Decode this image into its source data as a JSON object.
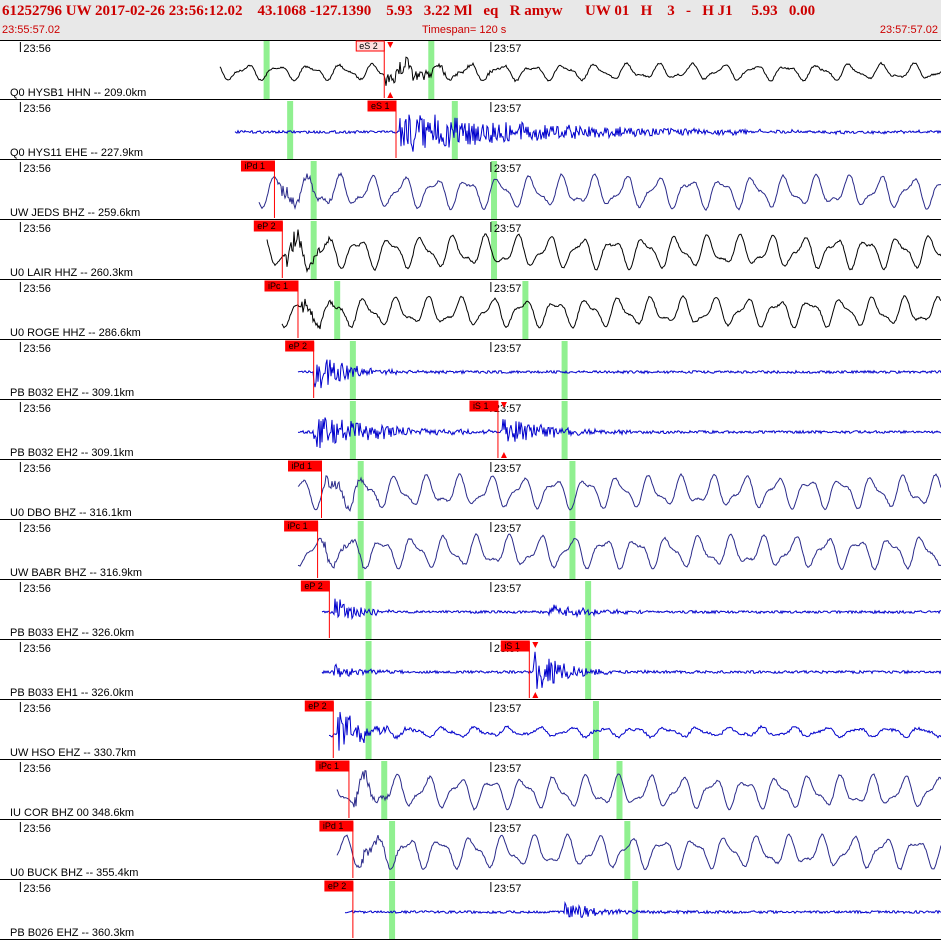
{
  "header": {
    "title": "61252796 UW 2017-02-26 23:56:12.02    43.1068 -127.1390    5.93   3.22 Ml   eq   R amyw      UW 01   H    3   -   H J1     5.93   0.00",
    "start_time": "23:55:57.02",
    "end_time": "23:57:57.02",
    "timespan": "Timespan= 120 s"
  },
  "chart_data": {
    "type": "line",
    "title": "",
    "x_start": "23:55:57.02",
    "x_end": "23:57:57.02",
    "timespan_s": 120,
    "tick_labels": [
      "23:56",
      "23:57"
    ],
    "tick_times_s": [
      2.98,
      62.98
    ],
    "grid": false,
    "colors": {
      "waveform_black": "#000000",
      "waveform_blue": "#0000cc",
      "pick": "#ff0000",
      "window": "#90f090"
    },
    "traces": [
      {
        "label": "Q0 HYSB1 HHN -- 209.0km",
        "color": "black",
        "onset_s": 28,
        "window_s": [
          34,
          55
        ],
        "picks": [
          {
            "label": "eS 2",
            "t": 49,
            "outline": true,
            "marker": true
          }
        ],
        "bursts": [
          {
            "t": 49,
            "amp": 1.0,
            "decay": 5
          }
        ],
        "lf": 0.5
      },
      {
        "label": "Q0 HYS11 EHE -- 227.9km",
        "color": "blue",
        "onset_s": 30,
        "window_s": [
          37,
          58
        ],
        "picks": [
          {
            "label": "eS 1",
            "t": 50.5
          }
        ],
        "bursts": [
          {
            "t": 51,
            "amp": 1.0,
            "decay": 18
          }
        ],
        "lf": 0.0
      },
      {
        "label": "UW JEDS BHZ -- 259.6km",
        "color": "navy",
        "onset_s": 33,
        "window_s": [
          40,
          63
        ],
        "picks": [
          {
            "label": "iPd 1",
            "t": 35
          }
        ],
        "bursts": [
          {
            "t": 35.5,
            "amp": 0.9,
            "decay": 3
          }
        ],
        "lf": 1.0
      },
      {
        "label": "U0 LAIR HHZ -- 260.3km",
        "color": "black",
        "onset_s": 34,
        "window_s": [
          40,
          63
        ],
        "picks": [
          {
            "label": "eP 2",
            "t": 36
          }
        ],
        "bursts": [
          {
            "t": 36.5,
            "amp": 1.0,
            "decay": 3
          }
        ],
        "lf": 1.0
      },
      {
        "label": "U0 ROGE HHZ -- 286.6km",
        "color": "black",
        "onset_s": 36,
        "window_s": [
          43,
          67
        ],
        "picks": [
          {
            "label": "iPc 1",
            "t": 38
          }
        ],
        "bursts": [
          {
            "t": 38.5,
            "amp": 0.6,
            "decay": 3
          }
        ],
        "lf": 0.9
      },
      {
        "label": "PB B032 EHZ -- 309.1km",
        "color": "blue",
        "onset_s": 38,
        "window_s": [
          45,
          72
        ],
        "picks": [
          {
            "label": "eP 2",
            "t": 40
          }
        ],
        "bursts": [
          {
            "t": 40,
            "amp": 1.0,
            "decay": 4
          }
        ],
        "lf": 0.0
      },
      {
        "label": "PB B032 EH2 -- 309.1km",
        "color": "blue",
        "onset_s": 38,
        "window_s": [
          45,
          72
        ],
        "picks": [
          {
            "label": "iS 1",
            "t": 63.5,
            "marker": true
          }
        ],
        "bursts": [
          {
            "t": 40,
            "amp": 0.9,
            "decay": 8
          },
          {
            "t": 64,
            "amp": 0.7,
            "decay": 6
          }
        ],
        "lf": 0.0
      },
      {
        "label": "U0 DBO BHZ -- 316.1km",
        "color": "navy",
        "onset_s": 38,
        "window_s": [
          46,
          73
        ],
        "picks": [
          {
            "label": "iPd 1",
            "t": 41
          }
        ],
        "bursts": [
          {
            "t": 41.5,
            "amp": 0.6,
            "decay": 3
          }
        ],
        "lf": 1.0
      },
      {
        "label": "UW BABR BHZ -- 316.9km",
        "color": "navy",
        "onset_s": 38,
        "window_s": [
          46,
          73
        ],
        "picks": [
          {
            "label": "iPc 1",
            "t": 40.5
          }
        ],
        "bursts": [
          {
            "t": 41,
            "amp": 0.6,
            "decay": 3
          }
        ],
        "lf": 1.0
      },
      {
        "label": "PB B033 EHZ -- 326.0km",
        "color": "blue",
        "onset_s": 41,
        "window_s": [
          47,
          75
        ],
        "picks": [
          {
            "label": "eP 2",
            "t": 42
          }
        ],
        "bursts": [
          {
            "t": 42.5,
            "amp": 0.9,
            "decay": 2.5
          },
          {
            "t": 70,
            "amp": 0.35,
            "decay": 5
          }
        ],
        "lf": 0.0
      },
      {
        "label": "PB B033 EH1 -- 326.0km",
        "color": "blue",
        "onset_s": 41,
        "window_s": [
          47,
          75
        ],
        "picks": [
          {
            "label": "iS 1",
            "t": 67.5,
            "marker": true
          }
        ],
        "bursts": [
          {
            "t": 42.5,
            "amp": 0.4,
            "decay": 3
          },
          {
            "t": 68,
            "amp": 1.0,
            "decay": 4
          }
        ],
        "lf": 0.0
      },
      {
        "label": "UW HSO EHZ -- 330.7km",
        "color": "blue",
        "onset_s": 42,
        "window_s": [
          47,
          76
        ],
        "picks": [
          {
            "label": "eP 2",
            "t": 42.5
          }
        ],
        "bursts": [
          {
            "t": 43,
            "amp": 1.0,
            "decay": 3
          }
        ],
        "lf": 0.3
      },
      {
        "label": "IU COR BHZ 00 348.6km",
        "color": "navy",
        "onset_s": 43,
        "window_s": [
          49,
          79
        ],
        "picks": [
          {
            "label": "iPc 1",
            "t": 44.5
          }
        ],
        "bursts": [
          {
            "t": 45,
            "amp": 0.7,
            "decay": 3
          }
        ],
        "lf": 1.0
      },
      {
        "label": "U0 BUCK BHZ -- 355.4km",
        "color": "navy",
        "onset_s": 43,
        "window_s": [
          50,
          80
        ],
        "picks": [
          {
            "label": "iPd 1",
            "t": 45
          }
        ],
        "bursts": [
          {
            "t": 45.5,
            "amp": 0.6,
            "decay": 3
          }
        ],
        "lf": 1.0
      },
      {
        "label": "PB B026 EHZ -- 360.3km",
        "color": "blue",
        "onset_s": 44,
        "window_s": [
          50,
          81
        ],
        "picks": [
          {
            "label": "eP 2",
            "t": 45
          }
        ],
        "bursts": [
          {
            "t": 72,
            "amp": 0.5,
            "decay": 4
          }
        ],
        "lf": 0.0
      }
    ]
  }
}
